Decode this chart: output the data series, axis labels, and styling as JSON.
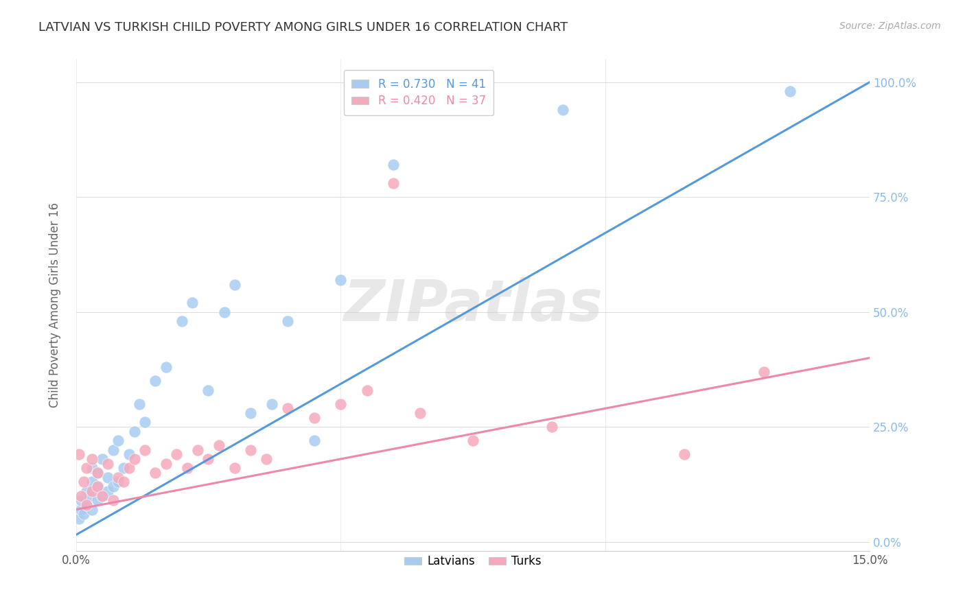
{
  "title": "LATVIAN VS TURKISH CHILD POVERTY AMONG GIRLS UNDER 16 CORRELATION CHART",
  "source": "Source: ZipAtlas.com",
  "ylabel": "Child Poverty Among Girls Under 16",
  "xlim": [
    0.0,
    0.15
  ],
  "ylim": [
    -0.02,
    1.05
  ],
  "watermark": "ZIPatlas",
  "latvian_color": "#A8CCF0",
  "turkish_color": "#F5AABC",
  "blue_line_color": "#5599DD",
  "pink_line_color": "#EE88AA",
  "legend_latvian_R": "R = 0.730",
  "legend_latvian_N": "N = 41",
  "legend_turkish_R": "R = 0.420",
  "legend_turkish_N": "N = 37",
  "latvian_scatter_x": [
    0.0005,
    0.001,
    0.001,
    0.0015,
    0.002,
    0.002,
    0.0025,
    0.003,
    0.003,
    0.003,
    0.004,
    0.004,
    0.004,
    0.005,
    0.005,
    0.006,
    0.006,
    0.007,
    0.007,
    0.008,
    0.008,
    0.009,
    0.01,
    0.011,
    0.012,
    0.013,
    0.015,
    0.017,
    0.02,
    0.022,
    0.025,
    0.028,
    0.03,
    0.033,
    0.037,
    0.04,
    0.045,
    0.05,
    0.06,
    0.092,
    0.135
  ],
  "latvian_scatter_y": [
    0.05,
    0.07,
    0.09,
    0.06,
    0.08,
    0.11,
    0.1,
    0.07,
    0.13,
    0.16,
    0.09,
    0.12,
    0.15,
    0.1,
    0.18,
    0.11,
    0.14,
    0.12,
    0.2,
    0.13,
    0.22,
    0.16,
    0.19,
    0.24,
    0.3,
    0.26,
    0.35,
    0.38,
    0.48,
    0.52,
    0.33,
    0.5,
    0.56,
    0.28,
    0.3,
    0.48,
    0.22,
    0.57,
    0.82,
    0.94,
    0.98
  ],
  "turkish_scatter_x": [
    0.0005,
    0.001,
    0.0015,
    0.002,
    0.002,
    0.003,
    0.003,
    0.004,
    0.004,
    0.005,
    0.006,
    0.007,
    0.008,
    0.009,
    0.01,
    0.011,
    0.013,
    0.015,
    0.017,
    0.019,
    0.021,
    0.023,
    0.025,
    0.027,
    0.03,
    0.033,
    0.036,
    0.04,
    0.045,
    0.05,
    0.055,
    0.06,
    0.065,
    0.075,
    0.09,
    0.115,
    0.13
  ],
  "turkish_scatter_y": [
    0.19,
    0.1,
    0.13,
    0.08,
    0.16,
    0.11,
    0.18,
    0.12,
    0.15,
    0.1,
    0.17,
    0.09,
    0.14,
    0.13,
    0.16,
    0.18,
    0.2,
    0.15,
    0.17,
    0.19,
    0.16,
    0.2,
    0.18,
    0.21,
    0.16,
    0.2,
    0.18,
    0.29,
    0.27,
    0.3,
    0.33,
    0.78,
    0.28,
    0.22,
    0.25,
    0.19,
    0.37
  ],
  "latvian_line_x": [
    0.0,
    0.15
  ],
  "latvian_line_y": [
    0.015,
    1.0
  ],
  "turkish_line_x": [
    0.0,
    0.15
  ],
  "turkish_line_y": [
    0.07,
    0.4
  ],
  "grid_color": "#DDDDDD",
  "background_color": "#FFFFFF",
  "title_color": "#333333",
  "axis_label_color": "#666666",
  "right_tick_color": "#88BBEE"
}
